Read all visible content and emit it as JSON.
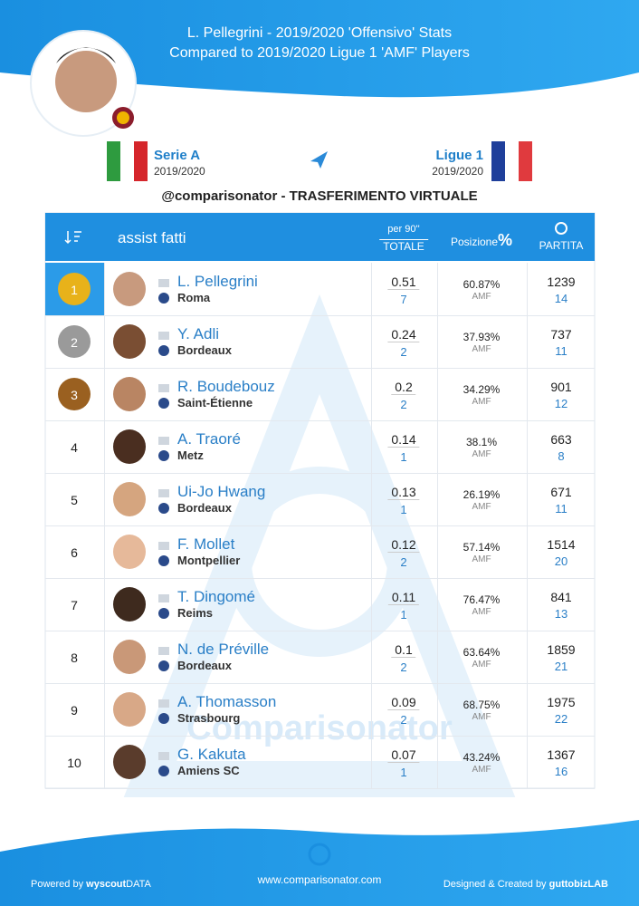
{
  "header": {
    "title_line1": "L. Pellegrini - 2019/2020 'Offensivo' Stats",
    "title_line2": "Compared to 2019/2020 Ligue 1 'AMF' Players"
  },
  "leagues": {
    "from": {
      "name": "Serie A",
      "season": "2019/2020"
    },
    "to": {
      "name": "Ligue 1",
      "season": "2019/2020"
    }
  },
  "subtitle": "@comparisonator - TRASFERIMENTO VIRTUALE",
  "table": {
    "metric": "assist fatti",
    "col_per90": "per 90''",
    "col_total": "TOTALE",
    "col_position": "Posizione",
    "col_percent": "%",
    "col_match": "PARTITA",
    "rows": [
      [
        "1",
        "L. Pellegrini",
        "Roma",
        "0.51",
        "7",
        "60.87%",
        "AMF",
        "1239",
        "14"
      ],
      [
        "2",
        "Y. Adli",
        "Bordeaux",
        "0.24",
        "2",
        "37.93%",
        "AMF",
        "737",
        "11"
      ],
      [
        "3",
        "R. Boudebouz",
        "Saint-Étienne",
        "0.2",
        "2",
        "34.29%",
        "AMF",
        "901",
        "12"
      ],
      [
        "4",
        "A. Traoré",
        "Metz",
        "0.14",
        "1",
        "38.1%",
        "AMF",
        "663",
        "8"
      ],
      [
        "5",
        "Ui-Jo Hwang",
        "Bordeaux",
        "0.13",
        "1",
        "26.19%",
        "AMF",
        "671",
        "11"
      ],
      [
        "6",
        "F. Mollet",
        "Montpellier",
        "0.12",
        "2",
        "57.14%",
        "AMF",
        "1514",
        "20"
      ],
      [
        "7",
        "T. Dingomé",
        "Reims",
        "0.11",
        "1",
        "76.47%",
        "AMF",
        "841",
        "13"
      ],
      [
        "8",
        "N. de Préville",
        "Bordeaux",
        "0.1",
        "2",
        "63.64%",
        "AMF",
        "1859",
        "21"
      ],
      [
        "9",
        "A. Thomasson",
        "Strasbourg",
        "0.09",
        "2",
        "68.75%",
        "AMF",
        "1975",
        "22"
      ],
      [
        "10",
        "G. Kakuta",
        "Amiens SC",
        "0.07",
        "1",
        "43.24%",
        "AMF",
        "1367",
        "16"
      ]
    ]
  },
  "watermark": "Comparisonator",
  "footer": {
    "powered": "Powered by",
    "brand": "wyscout",
    "brand_suffix": "DATA",
    "website": "www.comparisonator.com",
    "designed": "Designed & Created by",
    "designer": "guttobizLAB"
  }
}
